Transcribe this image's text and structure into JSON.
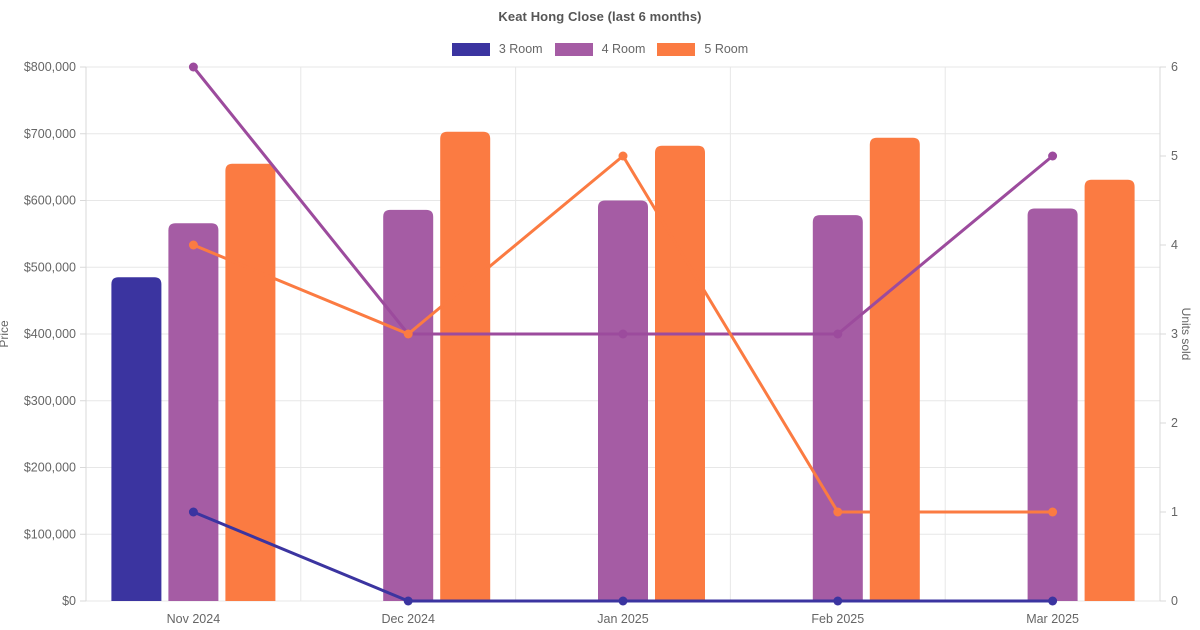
{
  "chart_data": {
    "type": "combo-bar-line",
    "title": "Keat Hong Close (last 6 months)",
    "categories": [
      "Nov 2024",
      "Dec 2024",
      "Jan 2025",
      "Feb 2025",
      "Mar 2025"
    ],
    "series": [
      {
        "name": "3 Room",
        "bar_color": "#3B34A0",
        "line_color": "#3B34A0",
        "price": [
          485000,
          null,
          null,
          null,
          null
        ],
        "units": [
          1,
          0,
          0,
          0,
          0
        ]
      },
      {
        "name": "4 Room",
        "bar_color": "#A55CA4",
        "line_color": "#9C4B9D",
        "price": [
          566000,
          586000,
          600000,
          578000,
          588000
        ],
        "units": [
          6,
          3,
          3,
          3,
          5
        ]
      },
      {
        "name": "5 Room",
        "bar_color": "#FB7B42",
        "line_color": "#FB7B42",
        "price": [
          655000,
          703000,
          682000,
          694000,
          631000
        ],
        "units": [
          4,
          3,
          5,
          1,
          1
        ]
      }
    ],
    "y_left": {
      "label": "Price",
      "min": 0,
      "max": 800000,
      "step": 100000,
      "ticks": [
        "$0",
        "$100,000",
        "$200,000",
        "$300,000",
        "$400,000",
        "$500,000",
        "$600,000",
        "$700,000",
        "$800,000"
      ]
    },
    "y_right": {
      "label": "Units sold",
      "min": 0,
      "max": 6,
      "step": 1,
      "ticks": [
        "0",
        "1",
        "2",
        "3",
        "4",
        "5",
        "6"
      ]
    },
    "legend_position": "top",
    "grid": true,
    "colors": {
      "grid": "#E7E7E7",
      "axis_border": "#D9D9D9",
      "tick_text": "#666666",
      "title_text": "#565656",
      "background": "#FFFFFF"
    }
  }
}
